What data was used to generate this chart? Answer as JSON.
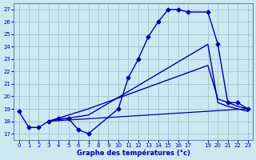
{
  "xlabel": "Graphe des températures (°c)",
  "background_color": "#cce8f0",
  "line_color": "#0000aa",
  "grid_color": "#99bbcc",
  "xlim": [
    -0.5,
    23.5
  ],
  "ylim": [
    16.5,
    27.5
  ],
  "yticks": [
    17,
    18,
    19,
    20,
    21,
    22,
    23,
    24,
    25,
    26,
    27
  ],
  "xticks": [
    0,
    1,
    2,
    3,
    4,
    5,
    6,
    7,
    8,
    9,
    10,
    11,
    12,
    13,
    14,
    15,
    16,
    17,
    19,
    20,
    21,
    22,
    23
  ],
  "series_marked": {
    "x": [
      0,
      1,
      2,
      3,
      4,
      5,
      6,
      7,
      10,
      11,
      12,
      13,
      14,
      15,
      16,
      17,
      19,
      20,
      21,
      22,
      23
    ],
    "y": [
      18.8,
      17.5,
      17.5,
      18.0,
      18.2,
      18.2,
      17.3,
      17.0,
      19.0,
      21.5,
      23.0,
      24.8,
      26.0,
      27.0,
      27.0,
      26.8,
      26.8,
      24.2,
      19.5,
      19.5,
      19.0
    ]
  },
  "series_diag1": {
    "x": [
      3,
      7,
      19,
      20,
      21,
      22,
      23
    ],
    "y": [
      18.0,
      19.0,
      22.5,
      19.8,
      19.5,
      19.2,
      19.0
    ]
  },
  "series_diag2": {
    "x": [
      3,
      7,
      19,
      20,
      21,
      22,
      23
    ],
    "y": [
      18.0,
      18.5,
      24.2,
      19.5,
      19.2,
      19.0,
      18.8
    ]
  },
  "series_flat": {
    "x": [
      3,
      7,
      19,
      23
    ],
    "y": [
      18.0,
      18.2,
      18.8,
      19.0
    ]
  }
}
